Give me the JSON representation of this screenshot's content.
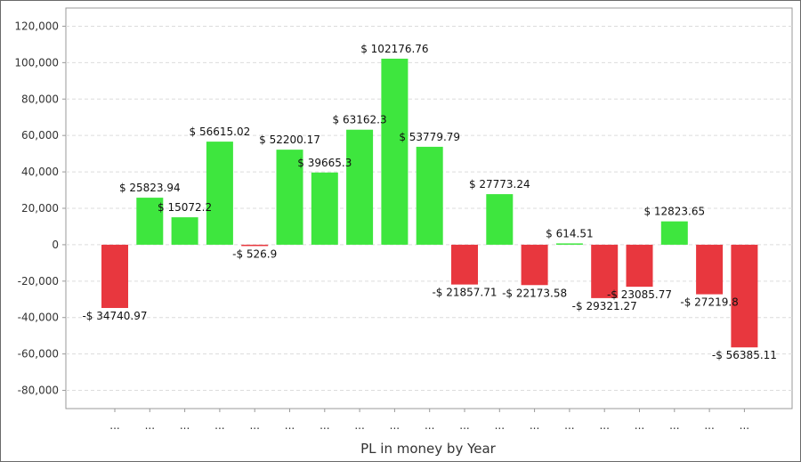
{
  "chart_data": {
    "type": "bar",
    "title": "",
    "xlabel": "PL in money by Year",
    "ylabel": "",
    "ylim": [
      -90000,
      130000
    ],
    "yticks": [
      120000,
      100000,
      80000,
      60000,
      40000,
      20000,
      0,
      -20000,
      -40000,
      -60000,
      -80000
    ],
    "ytick_labels": [
      "120,000",
      "100,000",
      "80,000",
      "60,000",
      "40,000",
      "20,000",
      "0",
      "-20,000",
      "-40,000",
      "-60,000",
      "-80,000"
    ],
    "grid": true,
    "categories": [
      "...",
      "...",
      "...",
      "...",
      "...",
      "...",
      "...",
      "...",
      "...",
      "...",
      "...",
      "...",
      "...",
      "...",
      "...",
      "...",
      "...",
      "...",
      "..."
    ],
    "values": [
      -34740.97,
      25823.94,
      15072.2,
      56615.02,
      -526.9,
      52200.17,
      39665.3,
      63162.3,
      102176.76,
      53779.79,
      -21857.71,
      27773.24,
      -22173.58,
      614.51,
      -29321.27,
      -23085.77,
      12823.65,
      -27219.8,
      -56385.11
    ],
    "data_labels": [
      "-$ 34740.97",
      "$ 25823.94",
      "$ 15072.2",
      "$ 56615.02",
      "-$ 526.9",
      "$ 52200.17",
      "$ 39665.3",
      "$ 63162.3",
      "$ 102176.76",
      "$ 53779.79",
      "-$ 21857.71",
      "$ 27773.24",
      "-$ 22173.58",
      "$ 614.51",
      "-$ 29321.27",
      "-$ 23085.77",
      "$ 12823.65",
      "-$ 27219.8",
      "-$ 56385.11"
    ],
    "colors": {
      "positive": "#3ee63e",
      "negative": "#e8373e",
      "grid": "#dcdcdc",
      "axis": "#999999"
    }
  }
}
